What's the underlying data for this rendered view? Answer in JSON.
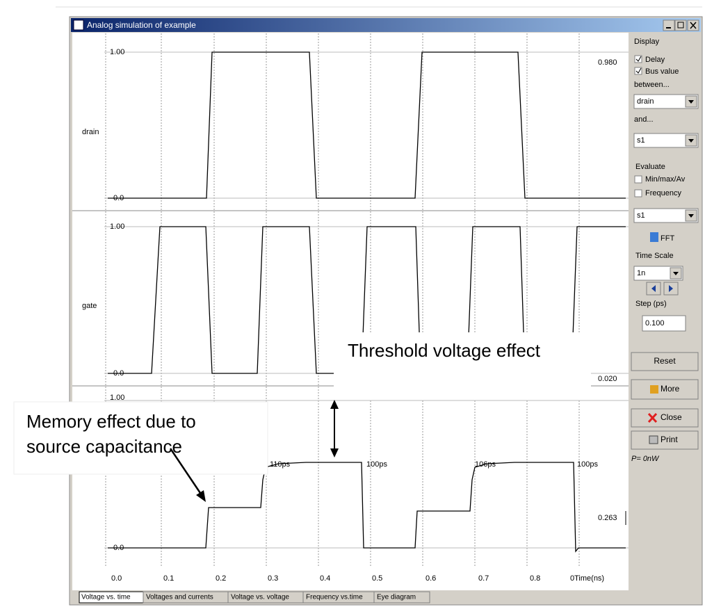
{
  "window": {
    "title": "Analog simulation of example"
  },
  "plots": [
    {
      "name": "drain",
      "max": "1.00",
      "min": "0.0",
      "value": "0.980"
    },
    {
      "name": "gate",
      "max": "1.00",
      "min": "0.0",
      "value": "0.020"
    },
    {
      "name": "s1",
      "max": "1.00",
      "min": "0.0",
      "value": "0.263",
      "delays": [
        "110ps",
        "100ps",
        "106ps",
        "100ps"
      ]
    }
  ],
  "x_axis": {
    "ticks": [
      "0.0",
      "0.1",
      "0.2",
      "0.3",
      "0.4",
      "0.5",
      "0.6",
      "0.7",
      "0.8",
      "0Time(ns)"
    ]
  },
  "panel": {
    "display": "Display",
    "delay": "Delay",
    "bus_value": "Bus value",
    "between": "between...",
    "between_select": "drain",
    "and": "and...",
    "and_select": "s1",
    "evaluate": "Evaluate",
    "minmax": "Min/max/Av",
    "frequency": "Frequency",
    "evaluate_select": "s1",
    "fft": "FFT",
    "time_scale": "Time Scale",
    "time_scale_select": "1n",
    "step": "Step (ps)",
    "step_value": "0.100",
    "reset": "Reset",
    "more": "More",
    "close": "Close",
    "print": "Print",
    "power": "P=  0nW"
  },
  "tabs": [
    "Voltage vs. time",
    "Voltages and currents",
    "Voltage vs. voltage",
    "Frequency vs.time",
    "Eye diagram"
  ],
  "annotations": {
    "threshold": "Threshold voltage effect",
    "memory": [
      "Memory effect due to",
      "source capacitance"
    ]
  }
}
